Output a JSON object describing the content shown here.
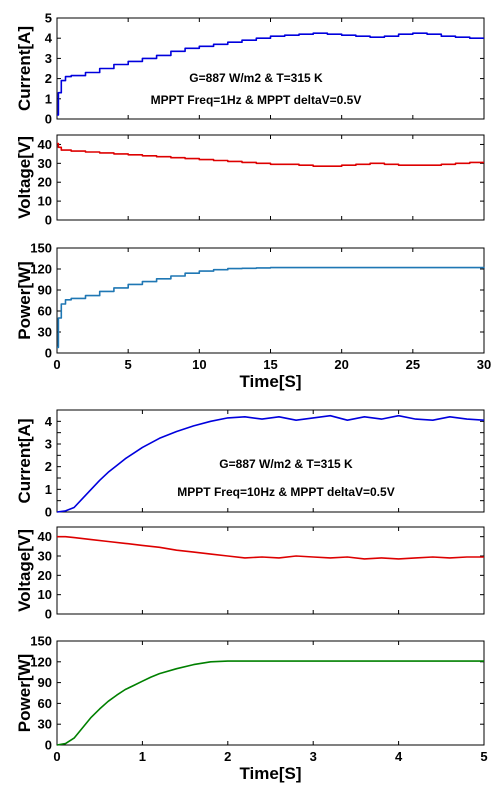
{
  "chart_data": [
    {
      "type": "line",
      "panel": "current",
      "group": "top",
      "ylabel": "Current[A]",
      "xlabel": "",
      "xlim": [
        0,
        30
      ],
      "ylim": [
        0,
        5
      ],
      "xticks": [
        0,
        5,
        10,
        15,
        20,
        25,
        30
      ],
      "yticks": [
        0,
        1,
        2,
        3,
        4,
        5
      ],
      "show_xticklabels": false,
      "grid": false,
      "annotations": [
        "G=887 W/m2 & T=315 K",
        "MPPT Freq=1Hz & MPPT deltaV=0.5V"
      ],
      "series": [
        {
          "color": "#0000dd",
          "step": true,
          "x": [
            0,
            0.1,
            0.3,
            0.6,
            1,
            2,
            3,
            4,
            5,
            6,
            7,
            8,
            9,
            10,
            11,
            12,
            13,
            14,
            15,
            16,
            17,
            18,
            19,
            20,
            21,
            22,
            23,
            24,
            25,
            26,
            27,
            28,
            29,
            30
          ],
          "y": [
            0.2,
            1.3,
            1.9,
            2.1,
            2.15,
            2.3,
            2.5,
            2.7,
            2.85,
            3.0,
            3.15,
            3.35,
            3.5,
            3.6,
            3.7,
            3.8,
            3.9,
            4.0,
            4.1,
            4.15,
            4.2,
            4.25,
            4.2,
            4.15,
            4.1,
            4.05,
            4.1,
            4.2,
            4.25,
            4.2,
            4.1,
            4.05,
            4.0,
            4.0
          ]
        }
      ]
    },
    {
      "type": "line",
      "panel": "voltage",
      "group": "top",
      "ylabel": "Voltage[V]",
      "xlabel": "",
      "xlim": [
        0,
        30
      ],
      "ylim": [
        0,
        45
      ],
      "xticks": [
        0,
        5,
        10,
        15,
        20,
        25,
        30
      ],
      "yticks": [
        0,
        10,
        20,
        30,
        40
      ],
      "show_xticklabels": false,
      "grid": false,
      "series": [
        {
          "color": "#dd0000",
          "step": true,
          "x": [
            0,
            0.1,
            0.3,
            1,
            2,
            3,
            4,
            5,
            6,
            7,
            8,
            9,
            10,
            11,
            12,
            13,
            14,
            15,
            16,
            17,
            18,
            19,
            20,
            21,
            22,
            23,
            24,
            25,
            26,
            27,
            28,
            29,
            30
          ],
          "y": [
            40.5,
            38.5,
            37,
            36.5,
            36,
            35.5,
            35,
            34.5,
            34,
            33.5,
            33,
            32.5,
            32,
            31.5,
            31,
            30.5,
            30,
            29.5,
            29.5,
            29,
            28.5,
            28.5,
            29,
            29.5,
            30,
            29.5,
            29,
            29,
            29,
            29.5,
            30,
            30.5,
            30.5
          ]
        }
      ]
    },
    {
      "type": "line",
      "panel": "power",
      "group": "top",
      "ylabel": "Power[W]",
      "xlabel": "Time[S]",
      "xlim": [
        0,
        30
      ],
      "ylim": [
        0,
        150
      ],
      "xticks": [
        0,
        5,
        10,
        15,
        20,
        25,
        30
      ],
      "yticks": [
        0,
        30,
        60,
        90,
        120,
        150
      ],
      "show_xticklabels": true,
      "grid": false,
      "series": [
        {
          "color": "#1f77b4",
          "step": true,
          "x": [
            0,
            0.1,
            0.3,
            0.6,
            1,
            2,
            3,
            4,
            5,
            6,
            7,
            8,
            9,
            10,
            11,
            12,
            13,
            14,
            15,
            16,
            17,
            18,
            19,
            20,
            21,
            22,
            23,
            24,
            25,
            26,
            27,
            28,
            29,
            30
          ],
          "y": [
            8,
            50,
            70,
            76,
            78,
            82,
            88,
            93,
            98,
            102,
            106,
            110,
            114,
            117,
            119,
            120.5,
            121,
            121.5,
            122,
            122,
            122,
            122,
            122,
            122,
            122,
            122,
            122,
            122,
            122,
            122,
            122,
            122,
            122,
            121
          ]
        }
      ]
    },
    {
      "type": "line",
      "panel": "current",
      "group": "bottom",
      "ylabel": "Current[A]",
      "xlabel": "",
      "xlim": [
        0,
        5
      ],
      "ylim": [
        0,
        4.5
      ],
      "xticks": [
        0,
        1,
        2,
        3,
        4,
        5
      ],
      "yticks": [
        0,
        0.5,
        1,
        1.5,
        2,
        2.5,
        3,
        3.5,
        4,
        4.5
      ],
      "ytick_labels": [
        "0",
        "",
        "1",
        "",
        "2",
        "",
        "3",
        "",
        "4",
        ""
      ],
      "show_xticklabels": false,
      "grid": false,
      "annotations": [
        "G=887 W/m2 & T=315 K",
        "MPPT Freq=10Hz & MPPT deltaV=0.5V"
      ],
      "series": [
        {
          "color": "#0000dd",
          "step": false,
          "x": [
            0,
            0.1,
            0.2,
            0.3,
            0.4,
            0.5,
            0.6,
            0.7,
            0.8,
            0.9,
            1.0,
            1.2,
            1.4,
            1.6,
            1.8,
            2.0,
            2.2,
            2.4,
            2.6,
            2.8,
            3.0,
            3.2,
            3.4,
            3.6,
            3.8,
            4.0,
            4.2,
            4.4,
            4.6,
            4.8,
            5.0
          ],
          "y": [
            0,
            0.05,
            0.2,
            0.6,
            1.0,
            1.4,
            1.75,
            2.05,
            2.35,
            2.6,
            2.85,
            3.25,
            3.55,
            3.8,
            4.0,
            4.15,
            4.2,
            4.1,
            4.2,
            4.05,
            4.15,
            4.25,
            4.05,
            4.2,
            4.1,
            4.25,
            4.1,
            4.05,
            4.2,
            4.1,
            4.05
          ]
        }
      ]
    },
    {
      "type": "line",
      "panel": "voltage",
      "group": "bottom",
      "ylabel": "Voltage[V]",
      "xlabel": "",
      "xlim": [
        0,
        5
      ],
      "ylim": [
        0,
        45
      ],
      "xticks": [
        0,
        1,
        2,
        3,
        4,
        5
      ],
      "yticks": [
        0,
        10,
        20,
        30,
        40
      ],
      "show_xticklabels": false,
      "grid": false,
      "series": [
        {
          "color": "#dd0000",
          "step": false,
          "x": [
            0,
            0.1,
            0.2,
            0.4,
            0.6,
            0.8,
            1.0,
            1.2,
            1.4,
            1.6,
            1.8,
            2.0,
            2.2,
            2.4,
            2.6,
            2.8,
            3.0,
            3.2,
            3.4,
            3.6,
            3.8,
            4.0,
            4.2,
            4.4,
            4.6,
            4.8,
            5.0
          ],
          "y": [
            40,
            40,
            39.5,
            38.5,
            37.5,
            36.5,
            35.5,
            34.5,
            33,
            32,
            31,
            30,
            29,
            29.5,
            29,
            30,
            29.5,
            29,
            29.5,
            28.5,
            29,
            28.5,
            29,
            29.5,
            29,
            29.5,
            29.5
          ]
        }
      ]
    },
    {
      "type": "line",
      "panel": "power",
      "group": "bottom",
      "ylabel": "Power[W]",
      "xlabel": "Time[S]",
      "xlim": [
        0,
        5
      ],
      "ylim": [
        0,
        150
      ],
      "xticks": [
        0,
        1,
        2,
        3,
        4,
        5
      ],
      "yticks": [
        0,
        30,
        60,
        90,
        120,
        150
      ],
      "show_xticklabels": true,
      "grid": false,
      "series": [
        {
          "color": "#008000",
          "step": false,
          "x": [
            0,
            0.1,
            0.2,
            0.3,
            0.4,
            0.5,
            0.6,
            0.7,
            0.8,
            0.9,
            1.0,
            1.1,
            1.2,
            1.4,
            1.6,
            1.8,
            2.0,
            2.5,
            3.0,
            3.5,
            4.0,
            4.5,
            5.0
          ],
          "y": [
            0,
            2,
            10,
            25,
            40,
            52,
            63,
            72,
            80,
            86,
            92,
            98,
            103,
            110,
            116,
            120,
            121,
            121,
            121,
            121,
            121,
            121,
            121
          ]
        }
      ]
    }
  ]
}
